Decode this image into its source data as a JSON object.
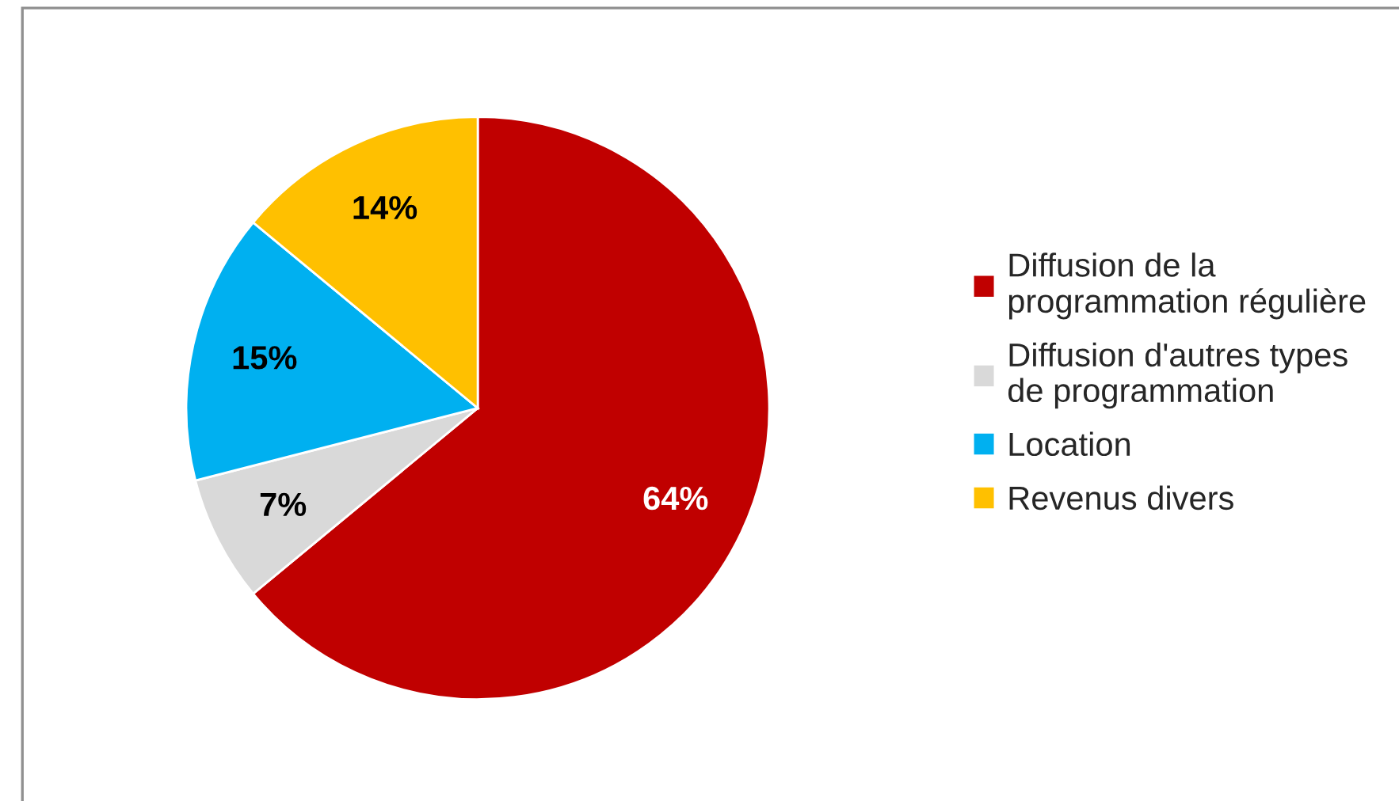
{
  "chart_data": {
    "type": "pie",
    "categories": [
      "Diffusion de la\nprogrammation régulière",
      "Diffusion d'autres types\nde programmation",
      "Location",
      "Revenus divers"
    ],
    "values": [
      64,
      7,
      15,
      14
    ],
    "colors": [
      "#c00000",
      "#d9d9d9",
      "#00b0f0",
      "#ffc000"
    ],
    "value_labels": [
      "64%",
      "7%",
      "15%",
      "14%"
    ],
    "legend": "right"
  }
}
